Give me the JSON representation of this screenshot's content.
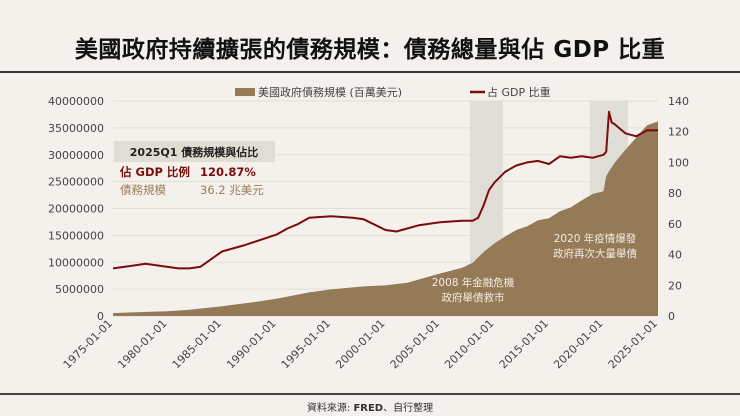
{
  "title": "美國政府持續擴張的債務規模：債務總量與佔 GDP 比重",
  "source_prefix": "資料來源: ",
  "source_bold": "FRED",
  "source_suffix": "、自行整理",
  "chart_data": {
    "type": "area+line",
    "legend": [
      {
        "name": "美國政府債務規模 (百萬美元)",
        "color": "#957a58",
        "kind": "area"
      },
      {
        "name": "占 GDP 比重",
        "color": "#7a0c0c",
        "kind": "line"
      }
    ],
    "legend_position": "top-center",
    "grid": true,
    "x_ticks": [
      "1975-01-01",
      "1980-01-01",
      "1985-01-01",
      "1990-01-01",
      "1995-01-01",
      "2000-01-01",
      "2005-01-01",
      "2010-01-01",
      "2015-01-01",
      "2020-01-01",
      "2025-01-01"
    ],
    "xlim": [
      1975,
      2025.25
    ],
    "y_left": {
      "lim": [
        0,
        40000000
      ],
      "ticks": [
        "0",
        "5000000",
        "10000000",
        "15000000",
        "20000000",
        "25000000",
        "30000000",
        "35000000",
        "40000000"
      ]
    },
    "y_right": {
      "lim": [
        0,
        140
      ],
      "ticks": [
        "0",
        "20",
        "40",
        "60",
        "80",
        "100",
        "120",
        "140"
      ]
    },
    "debt_series": {
      "name": "美國政府債務規模 (百萬美元)",
      "x": [
        1975,
        1977,
        1980,
        1982,
        1985,
        1988,
        1990,
        1993,
        1995,
        1998,
        2000,
        2002,
        2005,
        2007,
        2008,
        2009,
        2010,
        2011,
        2012,
        2013,
        2014,
        2015,
        2016,
        2017,
        2018,
        2019,
        2020,
        2020.25,
        2020.5,
        2021,
        2022,
        2023,
        2024,
        2025
      ],
      "values": [
        540000,
        700000,
        900000,
        1150000,
        1800000,
        2600000,
        3200000,
        4400000,
        4950000,
        5500000,
        5700000,
        6200000,
        7900000,
        8950000,
        9900000,
        11900000,
        13500000,
        14800000,
        16000000,
        16700000,
        17800000,
        18200000,
        19500000,
        20200000,
        21500000,
        22700000,
        23200000,
        26000000,
        26900000,
        28400000,
        30900000,
        33200000,
        35500000,
        36200000
      ]
    },
    "ratio_series": {
      "name": "占 GDP 比重",
      "x": [
        1975,
        1976,
        1978,
        1980,
        1981,
        1982,
        1983,
        1985,
        1987,
        1990,
        1991,
        1992,
        1993,
        1995,
        1997,
        1998,
        2000,
        2001,
        2002,
        2003,
        2005,
        2007,
        2008,
        2008.5,
        2009,
        2009.5,
        2010,
        2011,
        2012,
        2013,
        2014,
        2015,
        2016,
        2017,
        2018,
        2019,
        2020,
        2020.25,
        2020.5,
        2020.75,
        2021,
        2022,
        2023,
        2024,
        2025
      ],
      "values": [
        31,
        32,
        34,
        32,
        31,
        31,
        32,
        42,
        46,
        53,
        57,
        60,
        64,
        65,
        64,
        63,
        56,
        55,
        57,
        59,
        61,
        62,
        62,
        64,
        72,
        82,
        87,
        94,
        98,
        100,
        101,
        99,
        104,
        103,
        104,
        103,
        105,
        107,
        133,
        126,
        125,
        119,
        117,
        121,
        120.87
      ]
    },
    "shaded_periods": [
      [
        2007.75,
        2010.75
      ],
      [
        2018.75,
        2022.25
      ]
    ],
    "annotations": [
      {
        "line1": "2008 年金融危機",
        "line2": "政府舉債救市"
      },
      {
        "line1": "2020 年疫情爆發",
        "line2": "政府再次大量舉債"
      }
    ],
    "summary_box": {
      "header": "2025Q1 債務規模與佔比",
      "rows": [
        {
          "label": "佔 GDP 比例",
          "value": "120.87%",
          "color": "#7a0c0c"
        },
        {
          "label": "債務規模",
          "value": "36.2 兆美元",
          "color": "#9a7f5c"
        }
      ]
    }
  }
}
